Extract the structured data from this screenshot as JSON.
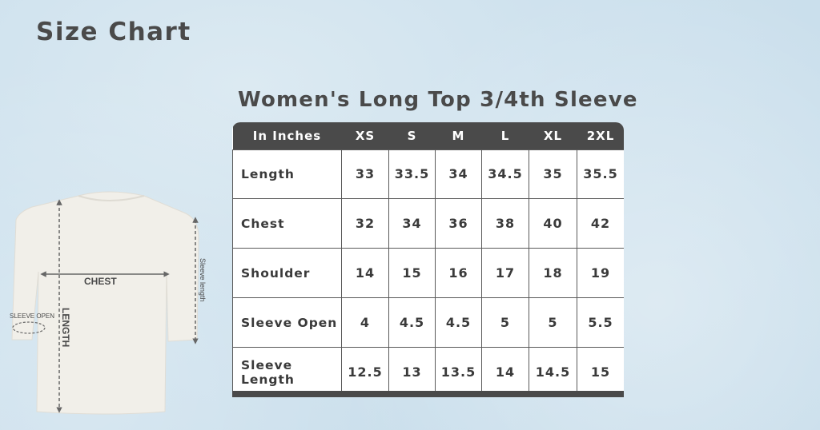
{
  "page_title": "Size Chart",
  "table_title": "Women's Long Top 3/4th Sleeve",
  "table": {
    "headers": [
      "In Inches",
      "XS",
      "S",
      "M",
      "L",
      "XL",
      "2XL"
    ],
    "rows": [
      {
        "label": "Length",
        "values": [
          "33",
          "33.5",
          "34",
          "34.5",
          "35",
          "35.5"
        ]
      },
      {
        "label": "Chest",
        "values": [
          "32",
          "34",
          "36",
          "38",
          "40",
          "42"
        ]
      },
      {
        "label": "Shoulder",
        "values": [
          "14",
          "15",
          "16",
          "17",
          "18",
          "19"
        ]
      },
      {
        "label": "Sleeve Open",
        "values": [
          "4",
          "4.5",
          "4.5",
          "5",
          "5",
          "5.5"
        ]
      },
      {
        "label": "Sleeve Length",
        "values": [
          "12.5",
          "13",
          "13.5",
          "14",
          "14.5",
          "15"
        ]
      }
    ]
  },
  "diagram": {
    "chest_label": "CHEST",
    "length_label": "LENGTH",
    "sleeve_open_label": "SLEEVE OPEN",
    "sleeve_length_label": "Sleeve length"
  }
}
